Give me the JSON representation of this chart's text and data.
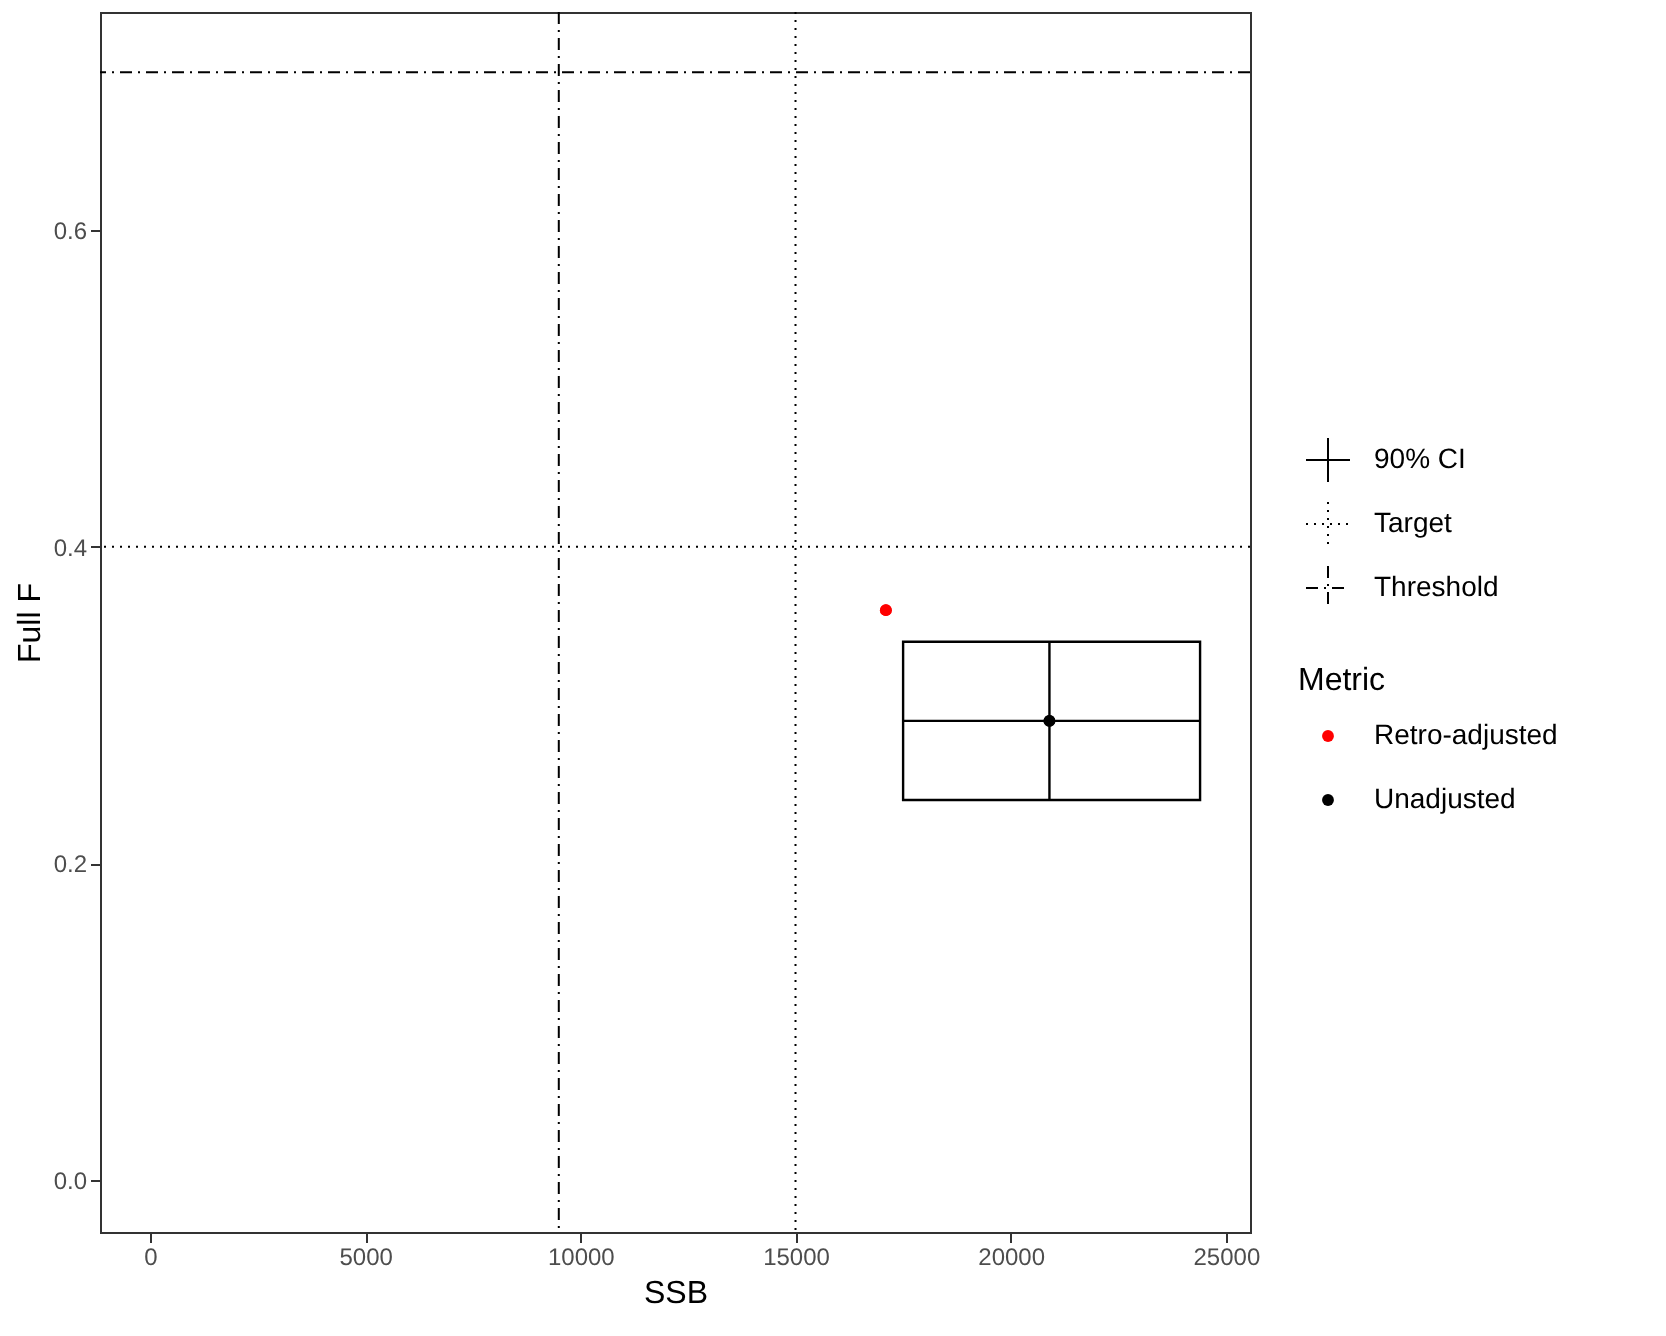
{
  "chart_data": {
    "type": "scatter",
    "xlabel": "SSB",
    "ylabel": "Full F",
    "legend_title": "Metric",
    "xlim": [
      -1160,
      25560
    ],
    "ylim": [
      -0.033,
      0.738
    ],
    "xticks": [
      0,
      5000,
      10000,
      15000,
      20000,
      25000
    ],
    "yticks": [
      {
        "value": 0,
        "label": "0.0"
      },
      0.2,
      0.4,
      0.6
    ],
    "grid": false,
    "legend": "right",
    "marker": "circle",
    "annotations": [
      "90% CI"
    ],
    "ref_lines": [
      {
        "axis": "y",
        "value": 0.7,
        "label": "Threshold",
        "line_style": "dashdot",
        "color": "#000000"
      },
      {
        "axis": "y",
        "value": 0.4,
        "label": "Target",
        "line_style": "dotted",
        "color": "#000000"
      },
      {
        "axis": "x",
        "value": 9500,
        "line_style": "dashdot",
        "color": "#000000"
      },
      {
        "axis": "x",
        "value": 15000,
        "line_style": "dotted",
        "color": "#000000"
      }
    ],
    "series": [
      {
        "name": "Retro-adjusted",
        "color": "#ff0000",
        "x": [
          17100
        ],
        "values": [
          0.36
        ]
      },
      {
        "name": "Unadjusted",
        "color": "#000000",
        "x": [
          20900
        ],
        "values": [
          0.29
        ],
        "errors": [
          [
            0.24,
            0.34
          ]
        ],
        "xerrors": [
          [
            17500,
            24400
          ]
        ]
      }
    ]
  }
}
